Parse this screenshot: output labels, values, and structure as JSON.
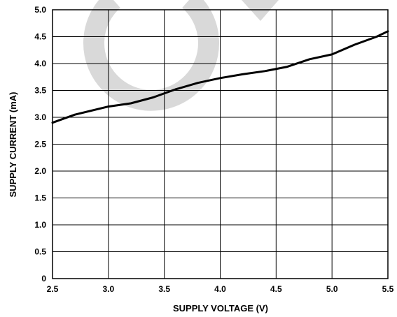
{
  "chart_data": {
    "type": "line",
    "title": "",
    "xlabel": "SUPPLY VOLTAGE (V)",
    "ylabel": "SUPPLY CURRENT (mA)",
    "xlim": [
      2.5,
      5.5
    ],
    "ylim": [
      0,
      5.0
    ],
    "xticks": [
      "2.5",
      "3.0",
      "3.5",
      "4.0",
      "4.5",
      "5.0",
      "5.5"
    ],
    "yticks": [
      "0",
      "0.5",
      "1.0",
      "1.5",
      "2.0",
      "2.5",
      "3.0",
      "3.5",
      "4.0",
      "4.5",
      "5.0"
    ],
    "grid": true,
    "series": [
      {
        "x": [
          2.5,
          2.7,
          3.0,
          3.2,
          3.4,
          3.6,
          3.8,
          4.0,
          4.2,
          4.4,
          4.6,
          4.8,
          5.0,
          5.2,
          5.4,
          5.5
        ],
        "y": [
          2.9,
          3.05,
          3.2,
          3.26,
          3.37,
          3.52,
          3.64,
          3.73,
          3.8,
          3.86,
          3.94,
          4.08,
          4.17,
          4.35,
          4.5,
          4.6
        ]
      }
    ],
    "line_color": "#000000",
    "watermark_color": "#d9d9d9"
  }
}
